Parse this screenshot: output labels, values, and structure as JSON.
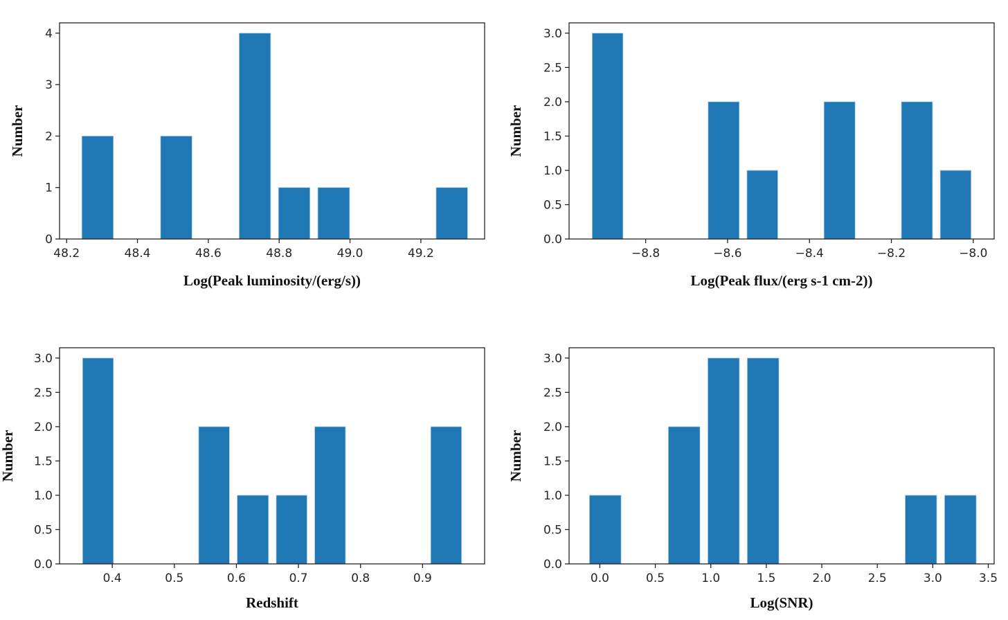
{
  "figure": {
    "bar_color": "#1f77b4",
    "bar_edge_color": "#a9cbe6"
  },
  "chart_data": [
    {
      "id": "peak-luminosity",
      "type": "bar",
      "histogram": true,
      "title": "",
      "xlabel": "Log(Peak luminosity/(erg/s))",
      "ylabel": "Number",
      "bin_edges": [
        48.232,
        48.343,
        48.454,
        48.565,
        48.676,
        48.787,
        48.898,
        49.01,
        49.121,
        49.232,
        49.343
      ],
      "values": [
        2,
        0,
        2,
        0,
        4,
        1,
        1,
        0,
        0,
        1
      ],
      "rwidth": 0.8,
      "xlim": [
        48.18,
        49.38
      ],
      "ylim": [
        0,
        4.2
      ],
      "xticks": [
        48.2,
        48.4,
        48.6,
        48.8,
        49.0,
        49.2
      ],
      "xtick_labels": [
        "48.2",
        "48.4",
        "48.6",
        "48.8",
        "49.0",
        "49.2"
      ],
      "yticks": [
        0,
        1,
        2,
        3,
        4
      ],
      "ytick_labels": [
        "0",
        "1",
        "2",
        "3",
        "4"
      ],
      "grid": false,
      "legend": "none"
    },
    {
      "id": "peak-flux",
      "type": "bar",
      "histogram": true,
      "title": "",
      "xlabel": "Log(Peak flux/(erg s-1 cm-2))",
      "ylabel": "Number",
      "bin_edges": [
        -8.94,
        -8.846,
        -8.751,
        -8.657,
        -8.562,
        -8.468,
        -8.374,
        -8.279,
        -8.185,
        -8.09,
        -7.996
      ],
      "values": [
        3,
        0,
        0,
        2,
        1,
        0,
        2,
        0,
        2,
        1
      ],
      "rwidth": 0.8,
      "xlim": [
        -8.987,
        -7.949
      ],
      "ylim": [
        0,
        3.15
      ],
      "xticks": [
        -8.8,
        -8.6,
        -8.4,
        -8.2,
        -8.0
      ],
      "xtick_labels": [
        "−8.8",
        "−8.6",
        "−8.4",
        "−8.2",
        "−8.0"
      ],
      "yticks": [
        0,
        0.5,
        1.0,
        1.5,
        2.0,
        2.5,
        3.0
      ],
      "ytick_labels": [
        "0.0",
        "0.5",
        "1.0",
        "1.5",
        "2.0",
        "2.5",
        "3.0"
      ],
      "grid": false,
      "legend": "none"
    },
    {
      "id": "redshift",
      "type": "bar",
      "histogram": true,
      "title": "",
      "xlabel": "Redshift",
      "ylabel": "Number",
      "bin_edges": [
        0.346,
        0.408,
        0.471,
        0.533,
        0.595,
        0.658,
        0.72,
        0.782,
        0.844,
        0.907,
        0.969
      ],
      "values": [
        3,
        0,
        0,
        2,
        1,
        1,
        2,
        0,
        0,
        2
      ],
      "rwidth": 0.8,
      "xlim": [
        0.315,
        1.0
      ],
      "ylim": [
        0,
        3.15
      ],
      "xticks": [
        0.4,
        0.5,
        0.6,
        0.7,
        0.8,
        0.9
      ],
      "xtick_labels": [
        "0.4",
        "0.5",
        "0.6",
        "0.7",
        "0.8",
        "0.9"
      ],
      "yticks": [
        0,
        0.5,
        1.0,
        1.5,
        2.0,
        2.5,
        3.0
      ],
      "ytick_labels": [
        "0.0",
        "0.5",
        "1.0",
        "1.5",
        "2.0",
        "2.5",
        "3.0"
      ],
      "grid": false,
      "legend": "none"
    },
    {
      "id": "log-snr",
      "type": "bar",
      "histogram": true,
      "title": "",
      "xlabel": "Log(SNR)",
      "ylabel": "Number",
      "bin_edges": [
        -0.129,
        0.227,
        0.582,
        0.938,
        1.293,
        1.649,
        2.004,
        2.36,
        2.716,
        3.071,
        3.427
      ],
      "values": [
        1,
        0,
        2,
        3,
        3,
        0,
        0,
        0,
        1,
        1
      ],
      "rwidth": 0.8,
      "xlim": [
        -0.277,
        3.553
      ],
      "ylim": [
        0,
        3.15
      ],
      "xticks": [
        0.0,
        0.5,
        1.0,
        1.5,
        2.0,
        2.5,
        3.0,
        3.5
      ],
      "xtick_labels": [
        "0.0",
        "0.5",
        "1.0",
        "1.5",
        "2.0",
        "2.5",
        "3.0",
        "3.5"
      ],
      "yticks": [
        0,
        0.5,
        1.0,
        1.5,
        2.0,
        2.5,
        3.0
      ],
      "ytick_labels": [
        "0.0",
        "0.5",
        "1.0",
        "1.5",
        "2.0",
        "2.5",
        "3.0"
      ],
      "grid": false,
      "legend": "none"
    }
  ]
}
